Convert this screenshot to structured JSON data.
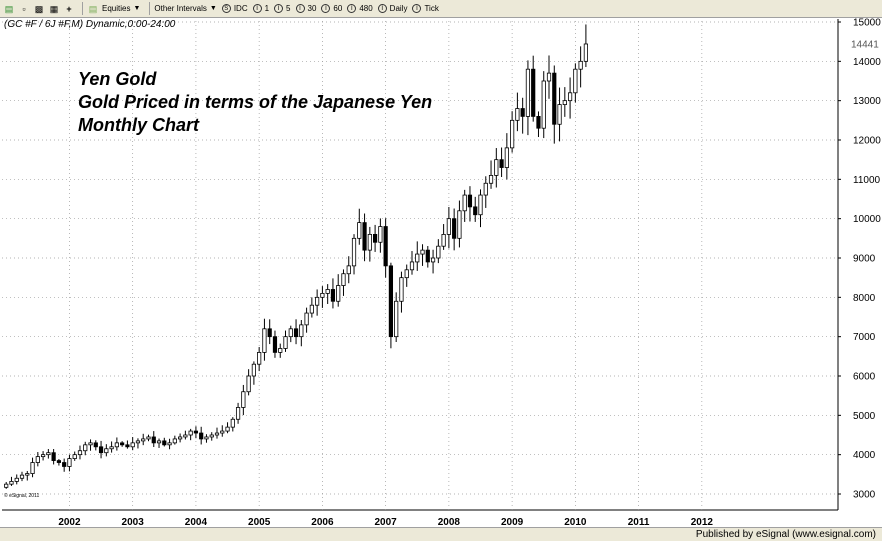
{
  "toolbar": {
    "equities": "Equities",
    "other_intervals": "Other Intervals",
    "idc": "IDC",
    "i1": "1",
    "i5": "5",
    "i30": "30",
    "i60": "60",
    "i480": "480",
    "daily": "Daily",
    "tick": "Tick"
  },
  "symbol": "(GC #F / 6J #F,M) Dynamic,0:00-24:00",
  "annotation": {
    "line1": "Yen Gold",
    "line2": "Gold Priced in terms of the Japanese Yen",
    "line3": "Monthly Chart"
  },
  "copyright": "© eSignal, 2011",
  "footer": "Published by eSignal (www.esignal.com)",
  "chart_data": {
    "type": "candlestick",
    "timeframe": "monthly",
    "ylim": [
      2850,
      15100
    ],
    "yticks": [
      3000,
      4000,
      5000,
      6000,
      7000,
      8000,
      9000,
      10000,
      11000,
      12000,
      13000,
      14000,
      15000
    ],
    "last_price_label": "14441",
    "last_price": 14441,
    "xticks": [
      "2002",
      "2003",
      "2004",
      "2005",
      "2006",
      "2007",
      "2008",
      "2009",
      "2010",
      "2011",
      "2012"
    ],
    "xtick_month_index": [
      12,
      24,
      36,
      48,
      60,
      72,
      84,
      96,
      108,
      120,
      132
    ],
    "closes": [
      3250,
      3320,
      3400,
      3480,
      3520,
      3800,
      3950,
      4000,
      4050,
      3850,
      3800,
      3700,
      3900,
      4000,
      4100,
      4250,
      4300,
      4200,
      4050,
      4150,
      4200,
      4300,
      4250,
      4200,
      4300,
      4350,
      4400,
      4450,
      4300,
      4350,
      4250,
      4300,
      4400,
      4450,
      4500,
      4600,
      4550,
      4400,
      4450,
      4500,
      4550,
      4600,
      4700,
      4900,
      5200,
      5600,
      6000,
      6300,
      6600,
      7200,
      7000,
      6600,
      6700,
      7000,
      7200,
      7000,
      7300,
      7600,
      7800,
      8000,
      8100,
      8200,
      7900,
      8300,
      8600,
      8800,
      9500,
      9900,
      9200,
      9600,
      9400,
      9800,
      8800,
      7000,
      7900,
      8500,
      8700,
      8900,
      9100,
      9200,
      8900,
      9000,
      9300,
      9600,
      10000,
      9500,
      10200,
      10600,
      10300,
      10100,
      10600,
      10900,
      11100,
      11500,
      11300,
      11800,
      12500,
      12800,
      12600,
      13800,
      12600,
      12300,
      13500,
      13700,
      12400,
      12900,
      13000,
      13200,
      13800,
      14000,
      14441
    ],
    "series": [
      {
        "values": [
          3250,
          3320,
          3400,
          3480,
          3520,
          3800,
          3950,
          4000,
          4050,
          3850,
          3800,
          3700,
          3900,
          4000,
          4100,
          4250,
          4300,
          4200,
          4050,
          4150,
          4200,
          4300,
          4250,
          4200,
          4300,
          4350,
          4400,
          4450,
          4300,
          4350,
          4250,
          4300,
          4400,
          4450,
          4500,
          4600,
          4550,
          4400,
          4450,
          4500,
          4550,
          4600,
          4700,
          4900,
          5200,
          5600,
          6000,
          6300,
          6600,
          7200,
          7000,
          6600,
          6700,
          7000,
          7200,
          7000,
          7300,
          7600,
          7800,
          8000,
          8100,
          8200,
          7900,
          8300,
          8600,
          8800,
          9500,
          9900,
          9200,
          9600,
          9400,
          9800,
          8800,
          7000,
          7900,
          8500,
          8700,
          8900,
          9100,
          9200,
          8900,
          9000,
          9300,
          9600,
          10000,
          9500,
          10200,
          10600,
          10300,
          10100,
          10600,
          10900,
          11100,
          11500,
          11300,
          11800,
          12500,
          12800,
          12600,
          13800,
          12600,
          12300,
          13500,
          13700,
          12400,
          12900,
          13000,
          13200,
          13800,
          14000,
          14441
        ]
      }
    ]
  }
}
